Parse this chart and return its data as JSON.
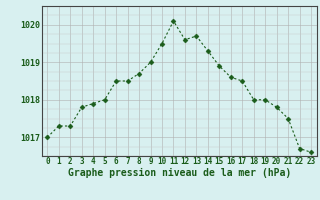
{
  "x": [
    0,
    1,
    2,
    3,
    4,
    5,
    6,
    7,
    8,
    9,
    10,
    11,
    12,
    13,
    14,
    15,
    16,
    17,
    18,
    19,
    20,
    21,
    22,
    23
  ],
  "y": [
    1017.0,
    1017.3,
    1017.3,
    1017.8,
    1017.9,
    1018.0,
    1018.5,
    1018.5,
    1018.7,
    1019.0,
    1019.5,
    1020.1,
    1019.6,
    1019.7,
    1019.3,
    1018.9,
    1018.6,
    1018.5,
    1018.0,
    1018.0,
    1017.8,
    1017.5,
    1016.7,
    1016.6
  ],
  "line_color": "#1a5c1a",
  "marker_color": "#1a5c1a",
  "bg_color": "#d8f0f0",
  "grid_color_major": "#b0b0b0",
  "grid_color_minor": "#c8c8c8",
  "xlabel": "Graphe pression niveau de la mer (hPa)",
  "ylim": [
    1016.5,
    1020.5
  ],
  "xlim": [
    -0.5,
    23.5
  ],
  "yticks": [
    1017,
    1018,
    1019,
    1020
  ],
  "xticks": [
    0,
    1,
    2,
    3,
    4,
    5,
    6,
    7,
    8,
    9,
    10,
    11,
    12,
    13,
    14,
    15,
    16,
    17,
    18,
    19,
    20,
    21,
    22,
    23
  ],
  "tick_fontsize": 5.5,
  "xlabel_fontsize": 7.0,
  "marker_size": 2.5,
  "linewidth": 0.8
}
